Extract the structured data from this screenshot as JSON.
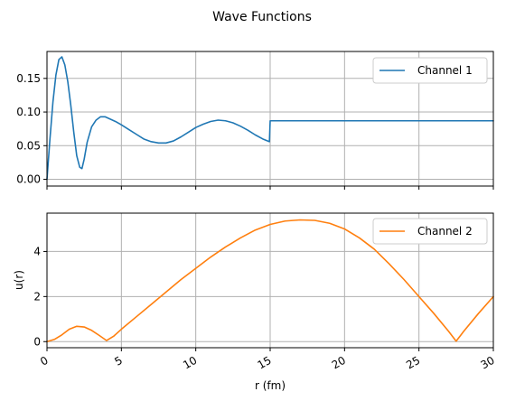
{
  "chart_data": {
    "title": "Wave Functions",
    "xlabel": "r (fm)",
    "xlim": [
      0,
      30
    ],
    "x_ticks": [
      0,
      5,
      10,
      15,
      20,
      25,
      30
    ],
    "x_tick_labels": [
      "0",
      "5",
      "10",
      "15",
      "20",
      "25",
      "30"
    ],
    "grid": true,
    "panels": [
      {
        "type": "line",
        "ylabel": "",
        "ylim": [
          -0.01,
          0.19
        ],
        "y_ticks": [
          0.0,
          0.05,
          0.1,
          0.15
        ],
        "y_tick_labels": [
          "0.00",
          "0.05",
          "0.10",
          "0.15"
        ],
        "legend_position": "top-right",
        "series": [
          {
            "name": "Channel 1",
            "color": "#1f77b4",
            "x": [
              0,
              0.2,
              0.4,
              0.6,
              0.8,
              1.0,
              1.2,
              1.4,
              1.6,
              1.8,
              2.0,
              2.2,
              2.35,
              2.5,
              2.7,
              3.0,
              3.3,
              3.6,
              3.9,
              4.2,
              4.6,
              5.0,
              5.5,
              6.0,
              6.5,
              7.0,
              7.5,
              8.0,
              8.5,
              9.0,
              9.5,
              10.0,
              10.5,
              11.0,
              11.5,
              12.0,
              12.5,
              13.0,
              13.5,
              14.0,
              14.5,
              14.95,
              15.0,
              15.5,
              20.0,
              25.0,
              30.0
            ],
            "values": [
              0.0,
              0.06,
              0.115,
              0.155,
              0.178,
              0.182,
              0.17,
              0.145,
              0.11,
              0.07,
              0.035,
              0.018,
              0.016,
              0.03,
              0.055,
              0.078,
              0.088,
              0.093,
              0.093,
              0.09,
              0.086,
              0.081,
              0.074,
              0.067,
              0.06,
              0.056,
              0.054,
              0.054,
              0.057,
              0.063,
              0.07,
              0.077,
              0.082,
              0.086,
              0.088,
              0.087,
              0.084,
              0.079,
              0.073,
              0.066,
              0.06,
              0.056,
              0.087,
              0.087,
              0.087,
              0.087,
              0.087
            ]
          }
        ]
      },
      {
        "type": "line",
        "ylabel": "u(r)",
        "ylim": [
          -0.27,
          5.7
        ],
        "y_ticks": [
          0,
          2,
          4
        ],
        "y_tick_labels": [
          "0",
          "2",
          "4"
        ],
        "legend_position": "top-right",
        "series": [
          {
            "name": "Channel 2",
            "color": "#ff7f0e",
            "x": [
              0,
              0.5,
              1.0,
              1.5,
              2.0,
              2.5,
              3.0,
              3.5,
              4.0,
              4.5,
              5.0,
              6.0,
              7.0,
              8.0,
              9.0,
              10.0,
              11.0,
              12.0,
              13.0,
              14.0,
              15.0,
              16.0,
              17.0,
              18.0,
              19.0,
              20.0,
              21.0,
              22.0,
              23.0,
              24.0,
              25.0,
              26.0,
              27.0,
              27.5,
              28.0,
              29.0,
              30.0
            ],
            "values": [
              0.0,
              0.1,
              0.3,
              0.55,
              0.68,
              0.65,
              0.5,
              0.28,
              0.05,
              0.25,
              0.55,
              1.1,
              1.65,
              2.2,
              2.75,
              3.25,
              3.75,
              4.2,
              4.6,
              4.95,
              5.2,
              5.35,
              5.4,
              5.38,
              5.25,
              5.0,
              4.6,
              4.1,
              3.45,
              2.75,
              2.0,
              1.25,
              0.45,
              0.02,
              0.45,
              1.25,
              2.0
            ]
          }
        ]
      }
    ]
  }
}
